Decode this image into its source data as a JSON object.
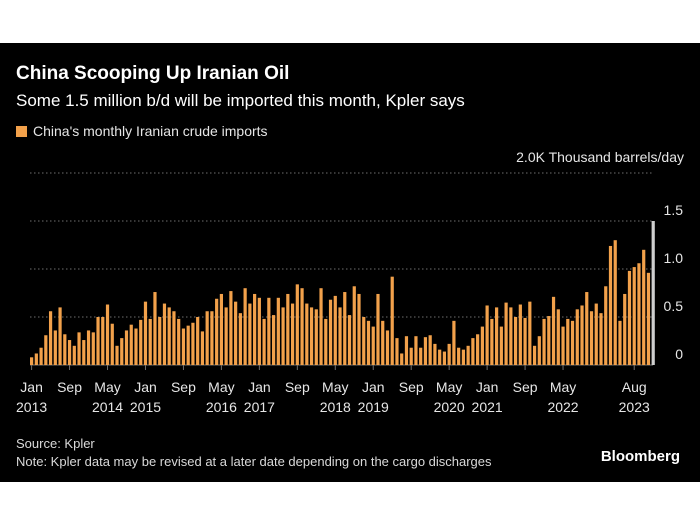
{
  "title": "China Scooping Up Iranian Oil",
  "subtitle": "Some 1.5 million b/d will be imported this month, Kpler says",
  "source": "Source: Kpler",
  "note": "Note: Kpler data may be revised at a later date depending on the cargo discharges",
  "brand": "Bloomberg",
  "colors": {
    "bar": "#f2a14b",
    "highlight": "#cfcfcf",
    "grid": "#6e6e6e",
    "text": "#e6e6e6"
  },
  "chart_data": {
    "type": "bar",
    "legend": "China's monthly Iranian crude imports",
    "unit_label": "2.0K Thousand barrels/day",
    "ylim": [
      0,
      2.0
    ],
    "yticks": [
      {
        "value": 0,
        "label": "0"
      },
      {
        "value": 0.5,
        "label": "0.5"
      },
      {
        "value": 1.0,
        "label": "1.0"
      },
      {
        "value": 1.5,
        "label": "1.5"
      }
    ],
    "start": "Jan 2013",
    "x_ticks": [
      {
        "month_index": 0,
        "line1": "Jan",
        "line2": "2013"
      },
      {
        "month_index": 8,
        "line1": "Sep",
        "line2": ""
      },
      {
        "month_index": 16,
        "line1": "May",
        "line2": "2014"
      },
      {
        "month_index": 24,
        "line1": "Jan",
        "line2": "2015"
      },
      {
        "month_index": 32,
        "line1": "Sep",
        "line2": ""
      },
      {
        "month_index": 40,
        "line1": "May",
        "line2": "2016"
      },
      {
        "month_index": 48,
        "line1": "Jan",
        "line2": "2017"
      },
      {
        "month_index": 56,
        "line1": "Sep",
        "line2": ""
      },
      {
        "month_index": 64,
        "line1": "May",
        "line2": "2018"
      },
      {
        "month_index": 72,
        "line1": "Jan",
        "line2": "2019"
      },
      {
        "month_index": 80,
        "line1": "Sep",
        "line2": ""
      },
      {
        "month_index": 88,
        "line1": "May",
        "line2": "2020"
      },
      {
        "month_index": 96,
        "line1": "Jan",
        "line2": "2021"
      },
      {
        "month_index": 104,
        "line1": "Sep",
        "line2": ""
      },
      {
        "month_index": 112,
        "line1": "May",
        "line2": "2022"
      },
      {
        "month_index": 127,
        "line1": "Aug",
        "line2": "2023"
      }
    ],
    "values": [
      0.08,
      0.12,
      0.18,
      0.31,
      0.56,
      0.36,
      0.6,
      0.32,
      0.26,
      0.2,
      0.34,
      0.26,
      0.36,
      0.34,
      0.5,
      0.5,
      0.63,
      0.43,
      0.2,
      0.28,
      0.36,
      0.42,
      0.38,
      0.47,
      0.66,
      0.48,
      0.76,
      0.5,
      0.64,
      0.6,
      0.56,
      0.48,
      0.38,
      0.41,
      0.44,
      0.5,
      0.35,
      0.56,
      0.56,
      0.69,
      0.74,
      0.6,
      0.77,
      0.66,
      0.54,
      0.8,
      0.64,
      0.74,
      0.7,
      0.48,
      0.7,
      0.52,
      0.7,
      0.6,
      0.74,
      0.64,
      0.84,
      0.8,
      0.64,
      0.6,
      0.58,
      0.8,
      0.48,
      0.68,
      0.72,
      0.6,
      0.76,
      0.52,
      0.82,
      0.74,
      0.5,
      0.46,
      0.4,
      0.74,
      0.46,
      0.36,
      0.92,
      0.28,
      0.12,
      0.3,
      0.18,
      0.3,
      0.18,
      0.29,
      0.31,
      0.22,
      0.16,
      0.14,
      0.22,
      0.46,
      0.18,
      0.16,
      0.2,
      0.28,
      0.32,
      0.4,
      0.62,
      0.48,
      0.6,
      0.4,
      0.65,
      0.6,
      0.5,
      0.63,
      0.49,
      0.66,
      0.2,
      0.3,
      0.48,
      0.51,
      0.71,
      0.58,
      0.4,
      0.48,
      0.46,
      0.58,
      0.62,
      0.76,
      0.56,
      0.64,
      0.54,
      0.82,
      1.24,
      1.3,
      0.46,
      0.74,
      0.98,
      1.02,
      1.06,
      1.2,
      0.96,
      1.5
    ]
  }
}
